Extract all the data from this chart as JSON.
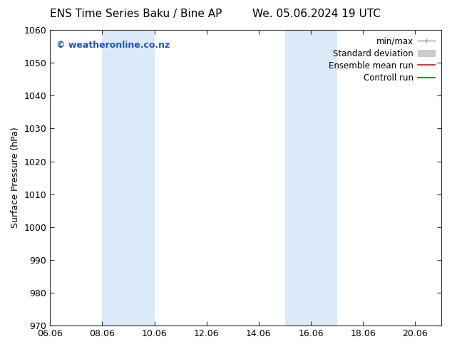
{
  "title_left": "ENS Time Series Baku / Bine AP",
  "title_right": "We. 05.06.2024 19 UTC",
  "ylabel": "Surface Pressure (hPa)",
  "xlim": [
    6.06,
    21.06
  ],
  "ylim": [
    970,
    1060
  ],
  "yticks": [
    970,
    980,
    990,
    1000,
    1010,
    1020,
    1030,
    1040,
    1050,
    1060
  ],
  "xticks": [
    6.06,
    8.06,
    10.06,
    12.06,
    14.06,
    16.06,
    18.06,
    20.06
  ],
  "xtick_labels": [
    "06.06",
    "08.06",
    "10.06",
    "12.06",
    "14.06",
    "16.06",
    "18.06",
    "20.06"
  ],
  "shaded_regions": [
    {
      "xmin": 8.06,
      "xmax": 10.06,
      "color": "#daeaf8"
    },
    {
      "xmin": 15.06,
      "xmax": 17.06,
      "color": "#daeaf8"
    }
  ],
  "watermark": "© weatheronline.co.nz",
  "watermark_color": "#2255bb",
  "background_color": "#ffffff",
  "title_fontsize": 11,
  "axis_label_fontsize": 9,
  "tick_fontsize": 9,
  "legend_fontsize": 8.5
}
